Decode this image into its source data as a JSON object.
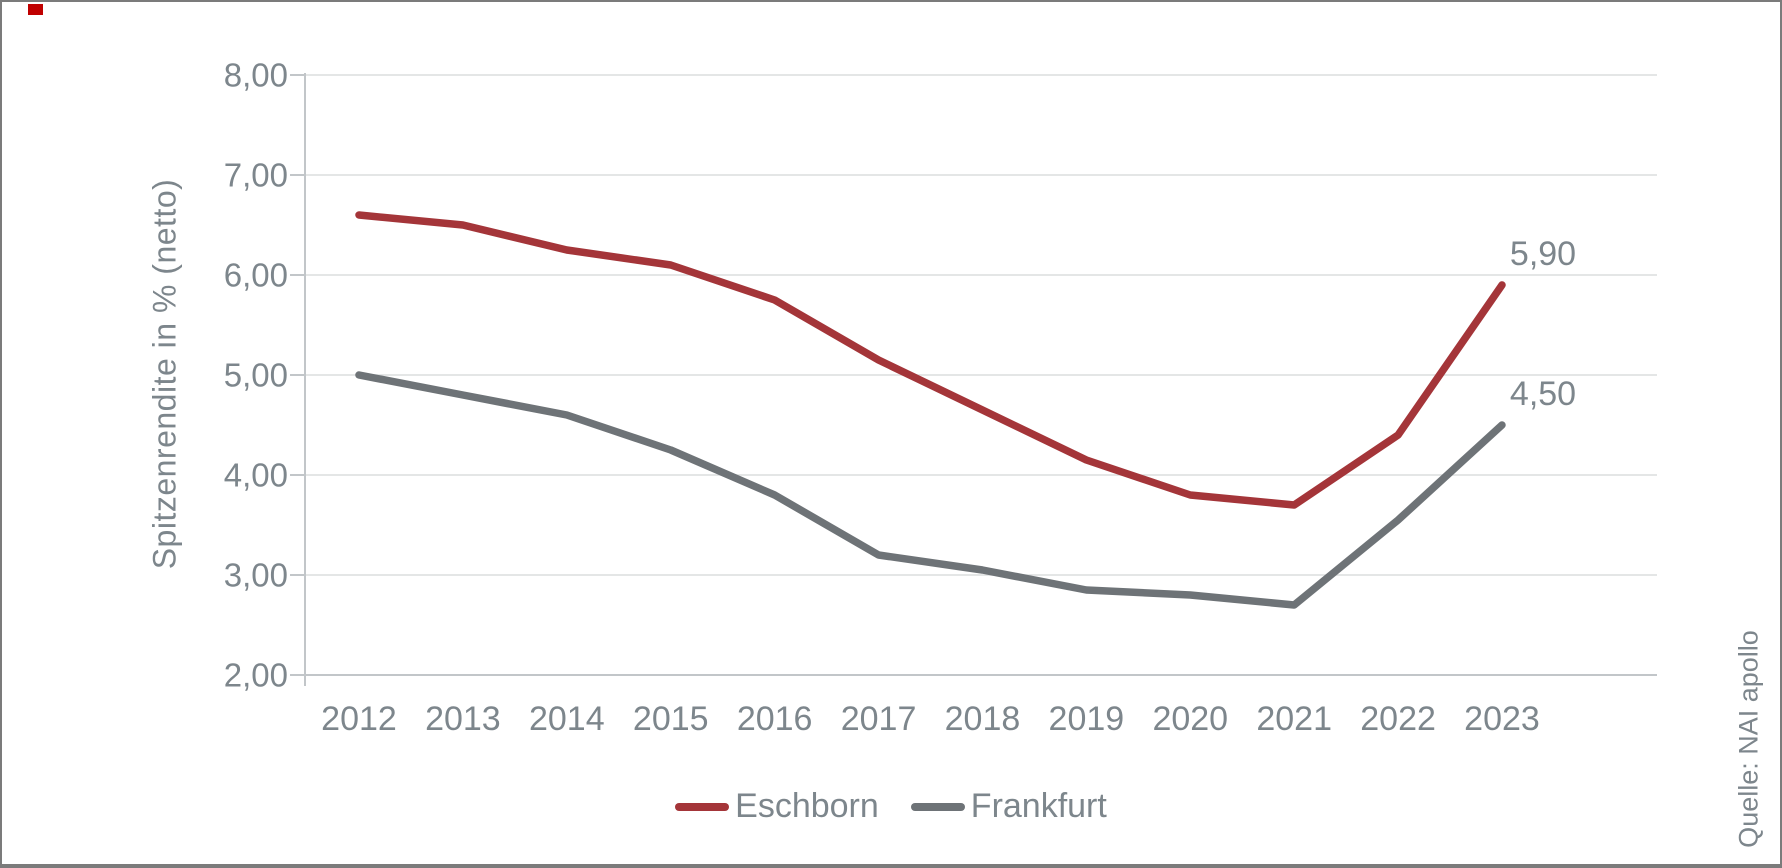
{
  "window": {
    "logo_mark_color": "#c00000",
    "background": "#ffffff",
    "border_color": "#7b7b7b"
  },
  "chart_data": {
    "type": "line",
    "title": "",
    "ylabel": "Spitzenrendite in % (netto)",
    "xlabel": "",
    "source": "Quelle: NAI apollo",
    "x": [
      "2012",
      "2013",
      "2014",
      "2015",
      "2016",
      "2017",
      "2018",
      "2019",
      "2020",
      "2021",
      "2022",
      "2023"
    ],
    "series": [
      {
        "name": "Eschborn",
        "color": "#a43539",
        "values": [
          6.6,
          6.5,
          6.25,
          6.1,
          5.75,
          5.15,
          4.65,
          4.15,
          3.8,
          3.7,
          4.4,
          5.9
        ],
        "end_label": "5,90"
      },
      {
        "name": "Frankfurt",
        "color": "#6e7377",
        "values": [
          5.0,
          4.8,
          4.6,
          4.25,
          3.8,
          3.2,
          3.05,
          2.85,
          2.8,
          2.7,
          3.55,
          4.5
        ],
        "end_label": "4,50"
      }
    ],
    "ylim": [
      2.0,
      8.0
    ],
    "ytick_step": 1.0,
    "ytick_labels": [
      "2,00",
      "3,00",
      "4,00",
      "5,00",
      "6,00",
      "7,00",
      "8,00"
    ],
    "grid": true,
    "legend_position": "bottom",
    "colors": {
      "grid_line": "#dbddde",
      "axis_line": "#c2c6c9",
      "tick_text": "#7d868c"
    }
  }
}
